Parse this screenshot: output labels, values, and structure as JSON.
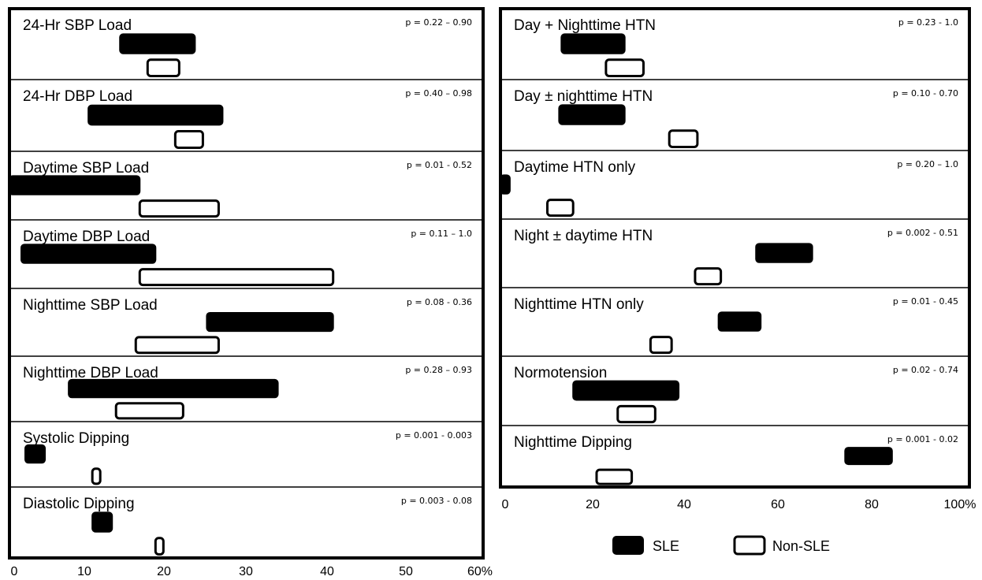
{
  "chart_data": [
    {
      "type": "bar",
      "subtype": "floating-range",
      "title": "",
      "xlabel": "",
      "ylabel": "",
      "xlim": [
        0,
        60
      ],
      "x_ticks": [
        "0",
        "10",
        "20",
        "30",
        "40",
        "50",
        "60%"
      ],
      "grid": false,
      "series": [
        {
          "name": "SLE",
          "fill": "#000000"
        },
        {
          "name": "Non-SLE",
          "fill": "#ffffff"
        }
      ],
      "rows": [
        {
          "label": "24-Hr SBP Load",
          "p": "p = 0.22 – 0.90",
          "SLE": [
            14,
            23.5
          ],
          "Non-SLE": [
            17.5,
            21.5
          ]
        },
        {
          "label": "24-Hr DBP Load",
          "p": "p = 0.40 – 0.98",
          "SLE": [
            10,
            27
          ],
          "Non-SLE": [
            21,
            24.5
          ]
        },
        {
          "label": "Daytime SBP Load",
          "p": "p = 0.01 - 0.52",
          "SLE": [
            0,
            16.5
          ],
          "Non-SLE": [
            16.5,
            26.5
          ]
        },
        {
          "label": "Daytime DBP Load",
          "p": "p = 0.11 – 1.0",
          "SLE": [
            1.5,
            18.5
          ],
          "Non-SLE": [
            16.5,
            41
          ]
        },
        {
          "label": "Nighttime SBP Load",
          "p": "p = 0.08 - 0.36",
          "SLE": [
            25,
            41
          ],
          "Non-SLE": [
            16,
            26.5
          ]
        },
        {
          "label": "Nighttime DBP Load",
          "p": "p = 0.28 – 0.93",
          "SLE": [
            7.5,
            34
          ],
          "Non-SLE": [
            13.5,
            22
          ]
        },
        {
          "label": "Systolic Dipping",
          "p": "p = 0.001 - 0.003",
          "SLE": [
            2,
            4.5
          ],
          "Non-SLE": [
            10.5,
            11.5
          ]
        },
        {
          "label": "Diastolic Dipping",
          "p": "p = 0.003 - 0.08",
          "SLE": [
            10.5,
            13
          ],
          "Non-SLE": [
            18.5,
            19.5
          ]
        }
      ]
    },
    {
      "type": "bar",
      "subtype": "floating-range",
      "title": "",
      "xlabel": "",
      "ylabel": "",
      "xlim": [
        0,
        100
      ],
      "x_ticks": [
        "0",
        "20",
        "40",
        "60",
        "80",
        "100%"
      ],
      "grid": false,
      "series": [
        {
          "name": "SLE",
          "fill": "#000000"
        },
        {
          "name": "Non-SLE",
          "fill": "#ffffff"
        }
      ],
      "legend": {
        "position": "bottom",
        "items": [
          "SLE",
          "Non-SLE"
        ]
      },
      "rows": [
        {
          "label": "Day + Nighttime HTN",
          "p": "p = 0.23 - 1.0",
          "SLE": [
            13,
            26.5
          ],
          "Non-SLE": [
            22.5,
            30.5
          ]
        },
        {
          "label": "Day ± nighttime HTN",
          "p": "p = 0.10 - 0.70",
          "SLE": [
            12.5,
            26.5
          ],
          "Non-SLE": [
            36,
            42
          ]
        },
        {
          "label": "Daytime HTN only",
          "p": "p = 0.20 – 1.0",
          "SLE": [
            0,
            2
          ],
          "Non-SLE": [
            10,
            15.5
          ]
        },
        {
          "label": "Night ± daytime HTN",
          "p": "p = 0.002 - 0.51",
          "SLE": [
            54.5,
            66.5
          ],
          "Non-SLE": [
            41.5,
            47
          ]
        },
        {
          "label": "Nighttime HTN only",
          "p": "p = 0.01 - 0.45",
          "SLE": [
            46.5,
            55.5
          ],
          "Non-SLE": [
            32,
            36.5
          ]
        },
        {
          "label": "Normotension",
          "p": "p = 0.02 - 0.74",
          "SLE": [
            15.5,
            38
          ],
          "Non-SLE": [
            25,
            33
          ]
        },
        {
          "label": "Nighttime Dipping",
          "p": "p = 0.001 - 0.02",
          "SLE": [
            73.5,
            83.5
          ],
          "Non-SLE": [
            20.5,
            28
          ]
        }
      ]
    }
  ]
}
